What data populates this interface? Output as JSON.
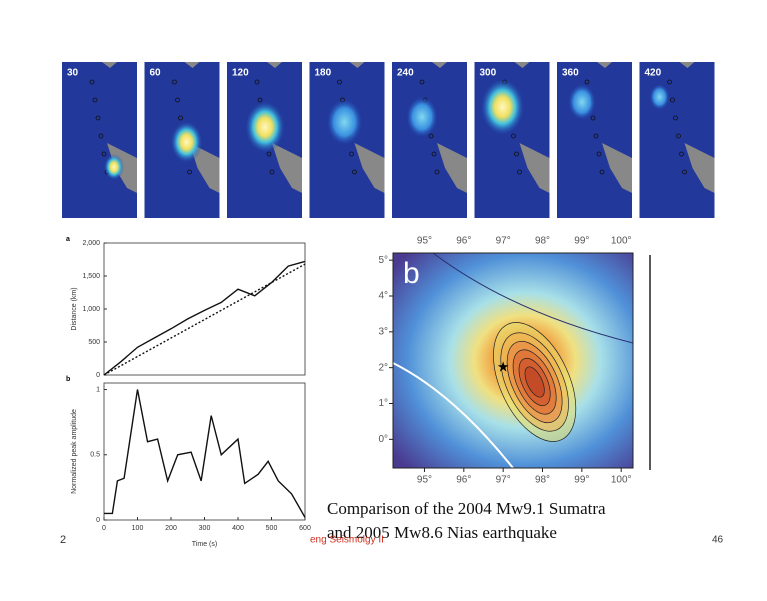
{
  "snapshots": {
    "labels": [
      "30",
      "60",
      "120",
      "180",
      "240",
      "300",
      "360",
      "420"
    ]
  },
  "chart_data": [
    {
      "type": "line",
      "title": "a",
      "ylabel": "Distance (km)",
      "x": [
        0,
        50,
        100,
        150,
        200,
        250,
        300,
        350,
        400,
        450,
        500,
        550,
        600
      ],
      "series": [
        {
          "color": "#111111",
          "dash": false,
          "values": [
            0,
            200,
            420,
            560,
            700,
            850,
            980,
            1100,
            1300,
            1200,
            1400,
            1650,
            1720
          ]
        },
        {
          "color": "#111111",
          "dash": true,
          "values": [
            0,
            140,
            280,
            420,
            560,
            700,
            840,
            980,
            1120,
            1260,
            1400,
            1540,
            1680
          ]
        }
      ],
      "xlim": [
        0,
        600
      ],
      "ylim": [
        0,
        2000
      ],
      "yticks": [
        0,
        500,
        {
          "value": 1000,
          "label": "1,000"
        },
        {
          "value": 1500,
          "label": "1,500"
        },
        {
          "value": 2000,
          "label": "2,000"
        }
      ]
    },
    {
      "type": "line",
      "title": "b",
      "ylabel": "Normalized peak amplitude",
      "xlabel": "Time (s)",
      "x": [
        0,
        25,
        40,
        60,
        100,
        130,
        160,
        190,
        220,
        260,
        290,
        320,
        350,
        400,
        420,
        460,
        490,
        520,
        560,
        600
      ],
      "series": [
        {
          "color": "#111111",
          "dash": false,
          "values": [
            0.05,
            0.05,
            0.3,
            0.32,
            1,
            0.6,
            0.62,
            0.3,
            0.5,
            0.52,
            0.3,
            0.8,
            0.5,
            0.62,
            0.28,
            0.35,
            0.45,
            0.3,
            0.2,
            0.02
          ]
        }
      ],
      "xlim": [
        0,
        600
      ],
      "ylim": [
        0,
        1.05
      ],
      "xticks": [
        0,
        100,
        200,
        300,
        400,
        500,
        600
      ],
      "yticks": [
        0,
        0.5,
        1
      ]
    },
    {
      "type": "map",
      "title": "b",
      "xlim": [
        94.2,
        100.3
      ],
      "ylim": [
        -0.8,
        5.2
      ],
      "xticks": [
        {
          "value": 95,
          "label": "95°"
        },
        {
          "value": 96,
          "label": "96°"
        },
        {
          "value": 97,
          "label": "97°"
        },
        {
          "value": 98,
          "label": "98°"
        },
        {
          "value": 99,
          "label": "99°"
        },
        {
          "value": 100,
          "label": "100°"
        }
      ],
      "yticks": [
        {
          "value": 0,
          "label": "0°"
        },
        {
          "value": 1,
          "label": "1°"
        },
        {
          "value": 2,
          "label": "2°"
        },
        {
          "value": 3,
          "label": "3°"
        },
        {
          "value": 4,
          "label": "4°"
        },
        {
          "value": 5,
          "label": "5°"
        }
      ],
      "epicenter": {
        "x": 97,
        "y": 2
      }
    }
  ],
  "caption": [
    "Comparison of the 2004 Mw9.1 Sumatra",
    "and 2005 Mw8.6 Nias earthquake"
  ],
  "footer": {
    "left": "2",
    "center": "eng Seismolgy II",
    "page": "46"
  }
}
